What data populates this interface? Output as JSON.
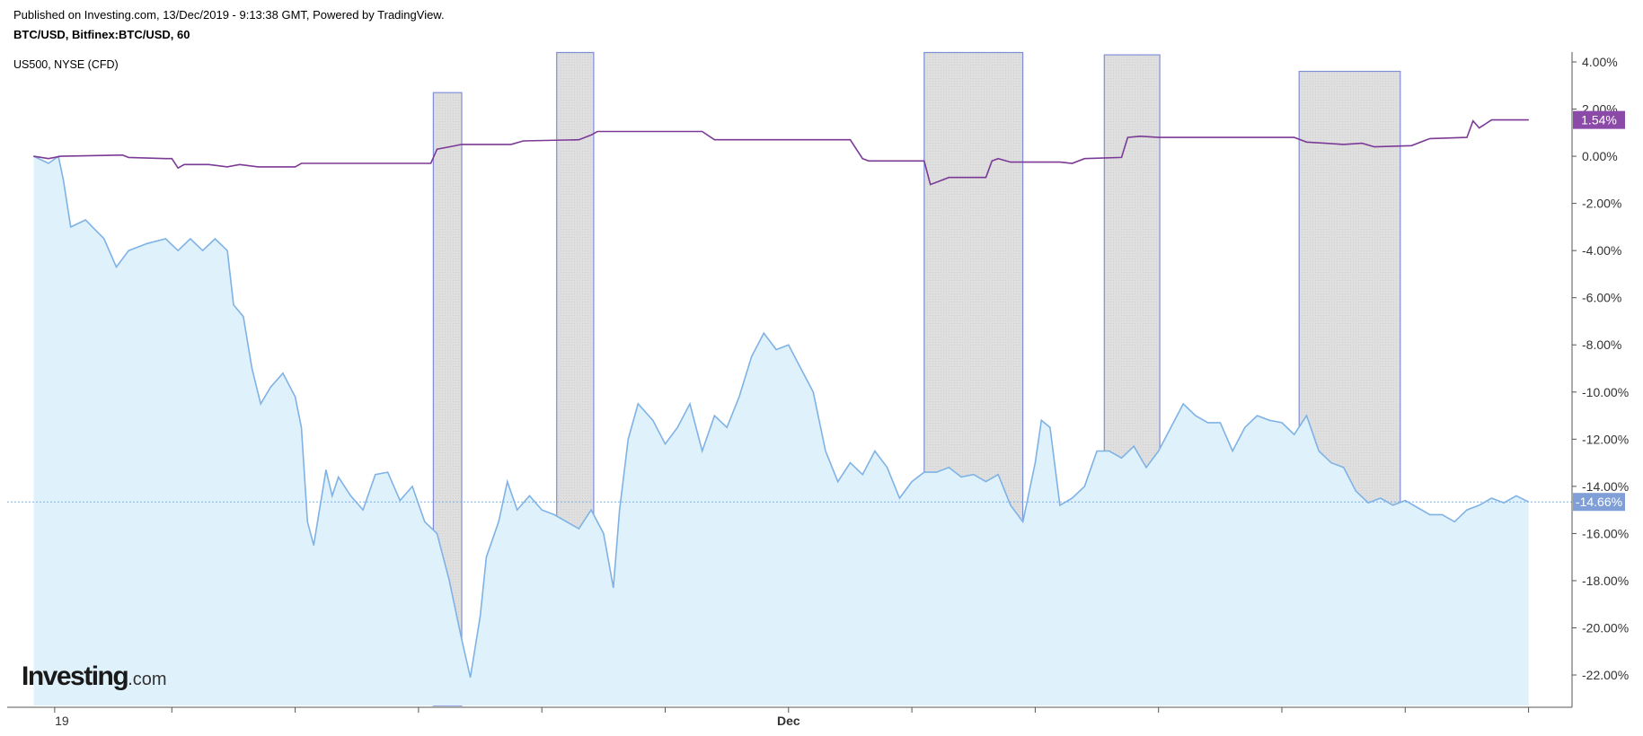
{
  "header": {
    "published": "Published on Investing.com, 13/Dec/2019 - 9:13:38 GMT, Powered by TradingView.",
    "symbol": "BTC/USD, Bitfinex:BTC/USD, 60",
    "comparison": "US500, NYSE (CFD)"
  },
  "logo": {
    "main": "Investing",
    "suffix": ".com"
  },
  "colors": {
    "btc_line": "#7fb2e5",
    "btc_fill": "#dff1fa",
    "us500_line": "#7b3a96",
    "us500_badge": "#8c4aa8",
    "btc_badge": "#7f9fd6",
    "shade_fill": "#d9d9d9",
    "shade_stroke": "#7f8fd6"
  },
  "chart_data": {
    "type": "line",
    "ylim": [
      -23.5,
      4.4
    ],
    "y_unit": "%",
    "y_ticks": [
      "4.00%",
      "2.00%",
      "0.00%",
      "-2.00%",
      "-4.00%",
      "-6.00%",
      "-8.00%",
      "-10.00%",
      "-12.00%",
      "-14.00%",
      "-16.00%",
      "-18.00%",
      "-20.00%",
      "-22.00%"
    ],
    "x_ticks": [
      {
        "label": "19",
        "t": 0.05
      },
      {
        "label": "",
        "t": 1.0
      },
      {
        "label": "",
        "t": 2.0
      },
      {
        "label": "",
        "t": 3.0
      },
      {
        "label": "",
        "t": 4.0
      },
      {
        "label": "",
        "t": 5.0
      },
      {
        "label": "Dec",
        "t": 6.0
      },
      {
        "label": "",
        "t": 7.0
      },
      {
        "label": "",
        "t": 8.0
      },
      {
        "label": "",
        "t": 9.0
      },
      {
        "label": "",
        "t": 10.0
      },
      {
        "label": "",
        "t": 11.0
      },
      {
        "label": "",
        "t": 12.0
      }
    ],
    "series": [
      {
        "name": "BTC/USD",
        "last_label": "-14.66%",
        "last_value": -14.66,
        "points": [
          [
            -0.12,
            0.0
          ],
          [
            0.0,
            -0.3
          ],
          [
            0.08,
            0.0
          ],
          [
            0.12,
            -1.0
          ],
          [
            0.18,
            -3.0
          ],
          [
            0.3,
            -2.7
          ],
          [
            0.45,
            -3.5
          ],
          [
            0.55,
            -4.7
          ],
          [
            0.65,
            -4.0
          ],
          [
            0.8,
            -3.7
          ],
          [
            0.95,
            -3.5
          ],
          [
            1.05,
            -4.0
          ],
          [
            1.15,
            -3.5
          ],
          [
            1.25,
            -4.0
          ],
          [
            1.35,
            -3.5
          ],
          [
            1.45,
            -4.0
          ],
          [
            1.5,
            -6.3
          ],
          [
            1.58,
            -6.8
          ],
          [
            1.65,
            -9.0
          ],
          [
            1.72,
            -10.5
          ],
          [
            1.8,
            -9.8
          ],
          [
            1.9,
            -9.2
          ],
          [
            2.0,
            -10.2
          ],
          [
            2.05,
            -11.5
          ],
          [
            2.1,
            -15.5
          ],
          [
            2.15,
            -16.5
          ],
          [
            2.25,
            -13.3
          ],
          [
            2.3,
            -14.4
          ],
          [
            2.35,
            -13.6
          ],
          [
            2.45,
            -14.4
          ],
          [
            2.55,
            -15.0
          ],
          [
            2.65,
            -13.5
          ],
          [
            2.75,
            -13.4
          ],
          [
            2.85,
            -14.6
          ],
          [
            2.95,
            -14.0
          ],
          [
            3.05,
            -15.5
          ],
          [
            3.15,
            -16.0
          ],
          [
            3.25,
            -18.0
          ],
          [
            3.35,
            -20.5
          ],
          [
            3.42,
            -22.1
          ],
          [
            3.5,
            -19.5
          ],
          [
            3.55,
            -17.0
          ],
          [
            3.65,
            -15.5
          ],
          [
            3.72,
            -13.8
          ],
          [
            3.8,
            -15.0
          ],
          [
            3.9,
            -14.4
          ],
          [
            4.0,
            -15.0
          ],
          [
            4.1,
            -15.2
          ],
          [
            4.2,
            -15.5
          ],
          [
            4.3,
            -15.8
          ],
          [
            4.4,
            -15.0
          ],
          [
            4.5,
            -16.0
          ],
          [
            4.58,
            -18.3
          ],
          [
            4.63,
            -15.0
          ],
          [
            4.7,
            -12.0
          ],
          [
            4.78,
            -10.5
          ],
          [
            4.9,
            -11.2
          ],
          [
            5.0,
            -12.2
          ],
          [
            5.1,
            -11.5
          ],
          [
            5.2,
            -10.5
          ],
          [
            5.3,
            -12.5
          ],
          [
            5.4,
            -11.0
          ],
          [
            5.5,
            -11.5
          ],
          [
            5.6,
            -10.2
          ],
          [
            5.7,
            -8.5
          ],
          [
            5.8,
            -7.5
          ],
          [
            5.9,
            -8.2
          ],
          [
            6.0,
            -8.0
          ],
          [
            6.1,
            -9.0
          ],
          [
            6.2,
            -10.0
          ],
          [
            6.3,
            -12.5
          ],
          [
            6.4,
            -13.8
          ],
          [
            6.5,
            -13.0
          ],
          [
            6.6,
            -13.5
          ],
          [
            6.7,
            -12.5
          ],
          [
            6.8,
            -13.2
          ],
          [
            6.9,
            -14.5
          ],
          [
            7.0,
            -13.8
          ],
          [
            7.1,
            -13.4
          ],
          [
            7.2,
            -13.4
          ],
          [
            7.3,
            -13.2
          ],
          [
            7.4,
            -13.6
          ],
          [
            7.5,
            -13.5
          ],
          [
            7.6,
            -13.8
          ],
          [
            7.7,
            -13.5
          ],
          [
            7.8,
            -14.8
          ],
          [
            7.9,
            -15.5
          ],
          [
            8.0,
            -13.0
          ],
          [
            8.05,
            -11.2
          ],
          [
            8.12,
            -11.5
          ],
          [
            8.2,
            -14.8
          ],
          [
            8.3,
            -14.5
          ],
          [
            8.4,
            -14.0
          ],
          [
            8.5,
            -12.5
          ],
          [
            8.6,
            -12.5
          ],
          [
            8.7,
            -12.8
          ],
          [
            8.8,
            -12.3
          ],
          [
            8.9,
            -13.2
          ],
          [
            9.0,
            -12.5
          ],
          [
            9.1,
            -11.5
          ],
          [
            9.2,
            -10.5
          ],
          [
            9.3,
            -11.0
          ],
          [
            9.4,
            -11.3
          ],
          [
            9.5,
            -11.3
          ],
          [
            9.6,
            -12.5
          ],
          [
            9.7,
            -11.5
          ],
          [
            9.8,
            -11.0
          ],
          [
            9.9,
            -11.2
          ],
          [
            10.0,
            -11.3
          ],
          [
            10.1,
            -11.8
          ],
          [
            10.2,
            -11.0
          ],
          [
            10.3,
            -12.5
          ],
          [
            10.4,
            -13.0
          ],
          [
            10.5,
            -13.2
          ],
          [
            10.6,
            -14.2
          ],
          [
            10.7,
            -14.7
          ],
          [
            10.8,
            -14.5
          ],
          [
            10.9,
            -14.8
          ],
          [
            11.0,
            -14.6
          ],
          [
            11.1,
            -14.9
          ],
          [
            11.2,
            -15.2
          ],
          [
            11.3,
            -15.2
          ],
          [
            11.4,
            -15.5
          ],
          [
            11.5,
            -15.0
          ],
          [
            11.6,
            -14.8
          ],
          [
            11.7,
            -14.5
          ],
          [
            11.8,
            -14.7
          ],
          [
            11.9,
            -14.4
          ],
          [
            12.0,
            -14.66
          ]
        ]
      },
      {
        "name": "US500",
        "last_label": "1.54%",
        "last_value": 1.54,
        "points": [
          [
            -0.12,
            0.0
          ],
          [
            0.0,
            -0.1
          ],
          [
            0.1,
            0.0
          ],
          [
            0.6,
            0.05
          ],
          [
            0.65,
            -0.05
          ],
          [
            0.95,
            -0.1
          ],
          [
            1.0,
            -0.1
          ],
          [
            1.05,
            -0.5
          ],
          [
            1.1,
            -0.35
          ],
          [
            1.3,
            -0.35
          ],
          [
            1.45,
            -0.45
          ],
          [
            1.55,
            -0.35
          ],
          [
            1.7,
            -0.45
          ],
          [
            2.0,
            -0.45
          ],
          [
            2.05,
            -0.3
          ],
          [
            3.1,
            -0.3
          ],
          [
            3.15,
            0.3
          ],
          [
            3.25,
            0.4
          ],
          [
            3.35,
            0.5
          ],
          [
            3.75,
            0.5
          ],
          [
            3.85,
            0.65
          ],
          [
            4.3,
            0.7
          ],
          [
            4.4,
            0.9
          ],
          [
            4.45,
            1.05
          ],
          [
            5.3,
            1.05
          ],
          [
            5.4,
            0.7
          ],
          [
            6.5,
            0.7
          ],
          [
            6.55,
            0.3
          ],
          [
            6.6,
            -0.1
          ],
          [
            6.65,
            -0.2
          ],
          [
            6.85,
            -0.2
          ],
          [
            7.1,
            -0.2
          ],
          [
            7.15,
            -1.2
          ],
          [
            7.2,
            -1.1
          ],
          [
            7.3,
            -0.9
          ],
          [
            7.6,
            -0.9
          ],
          [
            7.65,
            -0.2
          ],
          [
            7.7,
            -0.1
          ],
          [
            7.8,
            -0.25
          ],
          [
            8.2,
            -0.25
          ],
          [
            8.3,
            -0.3
          ],
          [
            8.4,
            -0.1
          ],
          [
            8.7,
            -0.05
          ],
          [
            8.75,
            0.8
          ],
          [
            8.85,
            0.85
          ],
          [
            9.0,
            0.8
          ],
          [
            10.1,
            0.8
          ],
          [
            10.2,
            0.6
          ],
          [
            10.35,
            0.55
          ],
          [
            10.5,
            0.5
          ],
          [
            10.65,
            0.55
          ],
          [
            10.75,
            0.4
          ],
          [
            11.05,
            0.45
          ],
          [
            11.15,
            0.65
          ],
          [
            11.2,
            0.75
          ],
          [
            11.5,
            0.8
          ],
          [
            11.55,
            1.5
          ],
          [
            11.6,
            1.2
          ],
          [
            11.7,
            1.54
          ],
          [
            12.0,
            1.54
          ]
        ]
      }
    ],
    "shaded_regions": [
      {
        "t0": 3.12,
        "t1": 3.35,
        "y_top": 2.7,
        "y_bottom": -23.3
      },
      {
        "t0": 4.12,
        "t1": 4.42,
        "y_top": 4.4,
        "y_bottom": -23.0
      },
      {
        "t0": 7.1,
        "t1": 7.9,
        "y_top": 4.4,
        "y_bottom": -23.2
      },
      {
        "t0": 8.56,
        "t1": 9.01,
        "y_top": 4.3,
        "y_bottom": -23.0
      },
      {
        "t0": 10.14,
        "t1": 10.96,
        "y_top": 3.6,
        "y_bottom": -23.1
      }
    ]
  }
}
